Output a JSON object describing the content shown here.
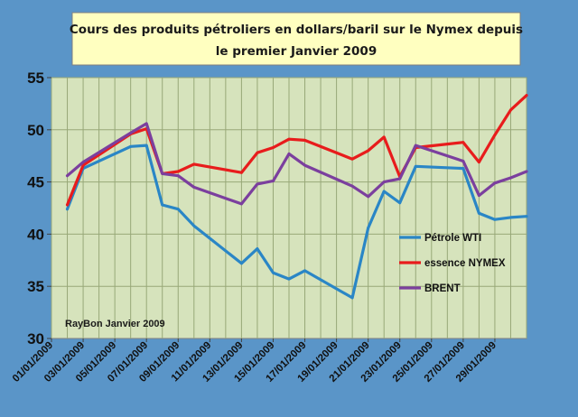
{
  "chart_data": {
    "type": "line",
    "title_lines": [
      "Cours des produits pétroliers en dollars/baril sur le Nymex depuis",
      "le premier Janvier 2009"
    ],
    "annotation": "RayBon Janvier 2009",
    "xlabel": "",
    "ylabel": "",
    "ylim": [
      30,
      55
    ],
    "yticks": [
      30,
      35,
      40,
      45,
      50,
      55
    ],
    "xlim": [
      "2009-01-01",
      "2009-01-31"
    ],
    "xticks": [
      "01/01/2009",
      "03/01/2009",
      "05/01/2009",
      "07/01/2009",
      "09/01/2009",
      "11/01/2009",
      "13/01/2009",
      "15/01/2009",
      "17/01/2009",
      "19/01/2009",
      "21/01/2009",
      "23/01/2009",
      "25/01/2009",
      "27/01/2009",
      "29/01/2009"
    ],
    "grid": true,
    "legend_position": "right",
    "series": [
      {
        "name": "Pétrole WTI",
        "color": "#2a86c6",
        "points": [
          [
            "2009-01-02",
            42.4
          ],
          [
            "2009-01-03",
            46.3
          ],
          [
            "2009-01-06",
            48.4
          ],
          [
            "2009-01-07",
            48.5
          ],
          [
            "2009-01-08",
            42.8
          ],
          [
            "2009-01-09",
            42.4
          ],
          [
            "2009-01-10",
            40.8
          ],
          [
            "2009-01-13",
            37.2
          ],
          [
            "2009-01-14",
            38.6
          ],
          [
            "2009-01-15",
            36.3
          ],
          [
            "2009-01-16",
            35.7
          ],
          [
            "2009-01-17",
            36.5
          ],
          [
            "2009-01-20",
            33.9
          ],
          [
            "2009-01-21",
            40.6
          ],
          [
            "2009-01-22",
            44.1
          ],
          [
            "2009-01-23",
            43.0
          ],
          [
            "2009-01-24",
            46.5
          ],
          [
            "2009-01-27",
            46.3
          ],
          [
            "2009-01-28",
            42.0
          ],
          [
            "2009-01-29",
            41.4
          ],
          [
            "2009-01-30",
            41.6
          ],
          [
            "2009-01-31",
            41.7
          ]
        ]
      },
      {
        "name": "essence NYMEX",
        "color": "#e81c1c",
        "points": [
          [
            "2009-01-02",
            42.8
          ],
          [
            "2009-01-03",
            46.6
          ],
          [
            "2009-01-06",
            49.6
          ],
          [
            "2009-01-07",
            50.1
          ],
          [
            "2009-01-08",
            45.8
          ],
          [
            "2009-01-09",
            46.0
          ],
          [
            "2009-01-10",
            46.7
          ],
          [
            "2009-01-13",
            45.9
          ],
          [
            "2009-01-14",
            47.8
          ],
          [
            "2009-01-15",
            48.3
          ],
          [
            "2009-01-16",
            49.1
          ],
          [
            "2009-01-17",
            49.0
          ],
          [
            "2009-01-20",
            47.2
          ],
          [
            "2009-01-21",
            48.0
          ],
          [
            "2009-01-22",
            49.3
          ],
          [
            "2009-01-23",
            45.5
          ],
          [
            "2009-01-24",
            48.3
          ],
          [
            "2009-01-27",
            48.8
          ],
          [
            "2009-01-28",
            46.9
          ],
          [
            "2009-01-29",
            49.5
          ],
          [
            "2009-01-30",
            51.9
          ],
          [
            "2009-01-31",
            53.3
          ]
        ]
      },
      {
        "name": "BRENT",
        "color": "#7b3f9e",
        "points": [
          [
            "2009-01-02",
            45.6
          ],
          [
            "2009-01-03",
            46.9
          ],
          [
            "2009-01-06",
            49.7
          ],
          [
            "2009-01-07",
            50.6
          ],
          [
            "2009-01-08",
            45.8
          ],
          [
            "2009-01-09",
            45.6
          ],
          [
            "2009-01-10",
            44.5
          ],
          [
            "2009-01-13",
            42.9
          ],
          [
            "2009-01-14",
            44.8
          ],
          [
            "2009-01-15",
            45.1
          ],
          [
            "2009-01-16",
            47.7
          ],
          [
            "2009-01-17",
            46.6
          ],
          [
            "2009-01-20",
            44.6
          ],
          [
            "2009-01-21",
            43.6
          ],
          [
            "2009-01-22",
            45.0
          ],
          [
            "2009-01-23",
            45.3
          ],
          [
            "2009-01-24",
            48.5
          ],
          [
            "2009-01-27",
            47.0
          ],
          [
            "2009-01-28",
            43.7
          ],
          [
            "2009-01-29",
            44.9
          ],
          [
            "2009-01-30",
            45.4
          ],
          [
            "2009-01-31",
            46.0
          ]
        ]
      }
    ]
  },
  "colors": {
    "background": "#5a95c8",
    "plot_area": "#d6e3bc",
    "title_box": "#ffffc0",
    "gridline": "#98a878"
  }
}
